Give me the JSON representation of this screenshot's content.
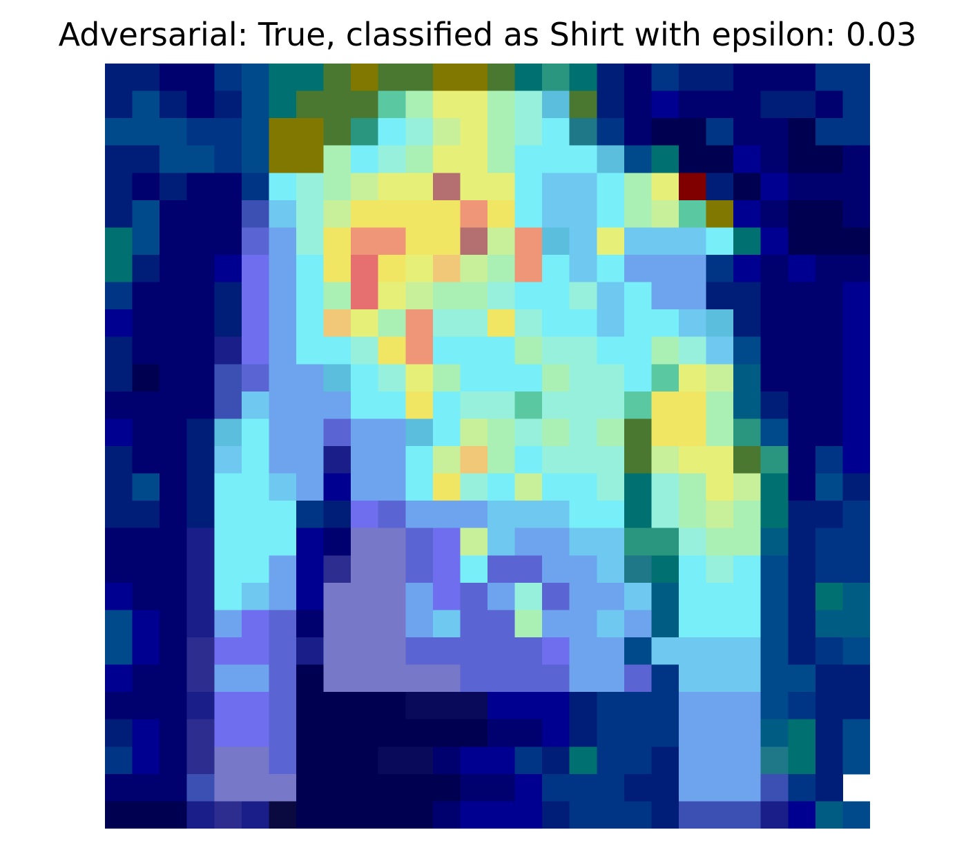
{
  "figure": {
    "title": "Adversarial: True, classified as Shirt with epsilon: 0.03"
  },
  "image": {
    "description_kind": "28x28 saliency heatmap overlaid on a Fashion-MNIST shirt image",
    "grid_size": 28,
    "colormap": "jet"
  },
  "colors": {
    "background": "#ffffff",
    "title_text": "#000000"
  }
}
